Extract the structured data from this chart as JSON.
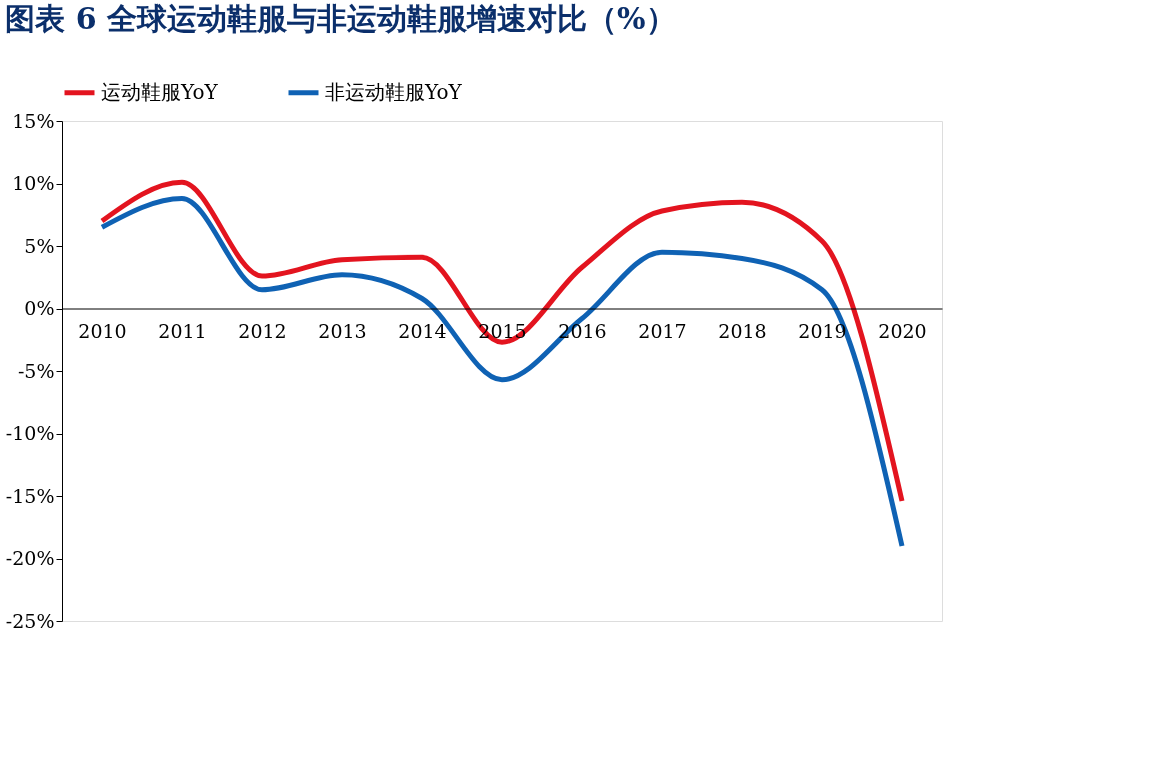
{
  "chart_data": {
    "type": "line",
    "title": "图表 6   全球运动鞋服与非运动鞋服增速对比（%）",
    "categories": [
      "2010",
      "2011",
      "2012",
      "2013",
      "2014",
      "2015",
      "2016",
      "2017",
      "2018",
      "2019",
      "2020"
    ],
    "series": [
      {
        "name": "运动鞋服YoY",
        "color": "#e3141f",
        "values": [
          7.0,
          10.1,
          2.6,
          3.9,
          4.1,
          -2.7,
          3.3,
          7.8,
          8.5,
          5.4,
          -15.4
        ]
      },
      {
        "name": "非运动鞋服YoY",
        "color": "#0f62b4",
        "values": [
          6.5,
          8.8,
          1.5,
          2.7,
          0.8,
          -5.7,
          -0.8,
          4.5,
          4.0,
          1.5,
          -19.0
        ]
      }
    ],
    "ylim": [
      -25,
      15
    ],
    "yticks": [
      {
        "value": -25,
        "label": "-25%"
      },
      {
        "value": -20,
        "label": "-20%"
      },
      {
        "value": -15,
        "label": "-15%"
      },
      {
        "value": -10,
        "label": "-10%"
      },
      {
        "value": -5,
        "label": "-5%"
      },
      {
        "value": 0,
        "label": "0%"
      },
      {
        "value": 5,
        "label": "5%"
      },
      {
        "value": 10,
        "label": "10%"
      },
      {
        "value": 15,
        "label": "15%"
      }
    ],
    "legend": "top",
    "grid": false,
    "marker": "none",
    "line_style": "solid"
  }
}
